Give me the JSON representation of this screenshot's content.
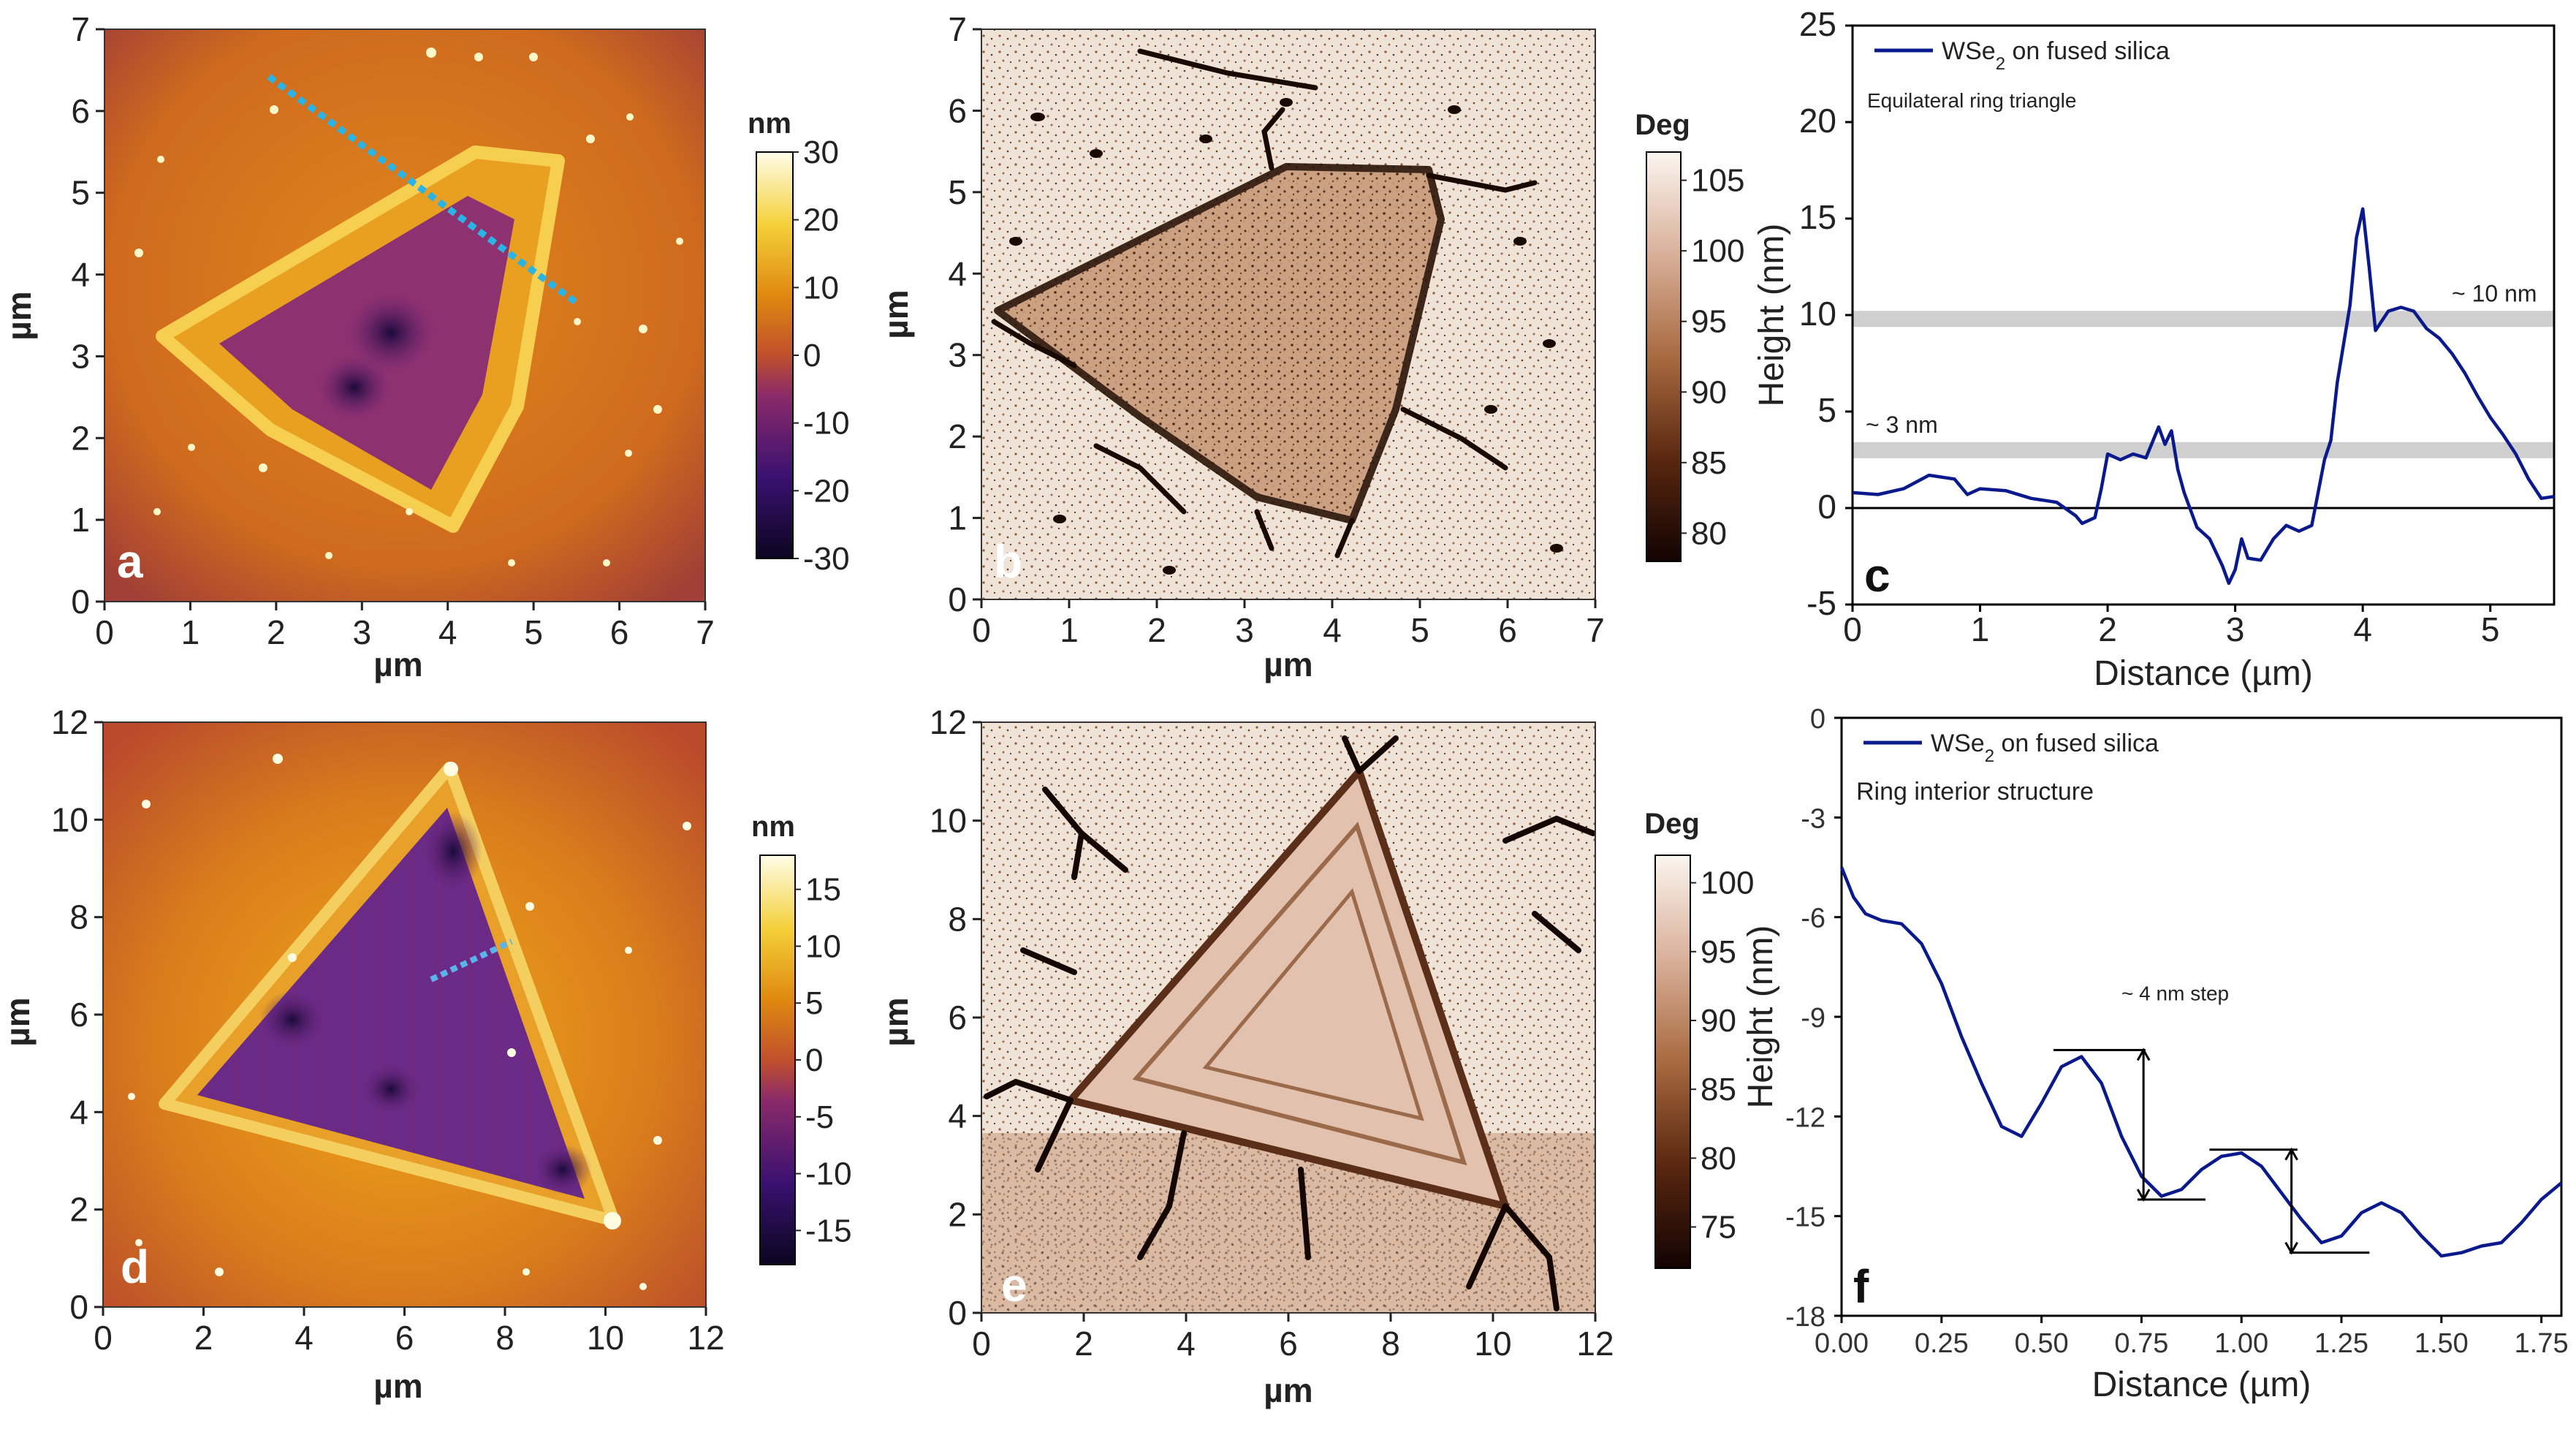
{
  "figure": {
    "panels": [
      {
        "id": "a",
        "label": "a",
        "type": "afm-height",
        "x_label": "µm",
        "y_label": "µm",
        "x_ticks": [
          "0",
          "1",
          "2",
          "3",
          "4",
          "5",
          "6",
          "7"
        ],
        "y_ticks": [
          "0",
          "1",
          "2",
          "3",
          "4",
          "5",
          "6",
          "7"
        ],
        "colorbar": {
          "unit": "nm",
          "ticks": [
            "30",
            "20",
            "10",
            "0",
            "-10",
            "-20",
            "-30"
          ],
          "min": -30,
          "max": 30
        }
      },
      {
        "id": "b",
        "label": "b",
        "type": "afm-phase",
        "x_label": "µm",
        "y_label": "µm",
        "x_ticks": [
          "0",
          "1",
          "2",
          "3",
          "4",
          "5",
          "6",
          "7"
        ],
        "y_ticks": [
          "0",
          "1",
          "2",
          "3",
          "4",
          "5",
          "6",
          "7"
        ],
        "colorbar": {
          "unit": "Deg",
          "ticks": [
            "105",
            "100",
            "95",
            "90",
            "85",
            "80"
          ],
          "min": 78,
          "max": 107
        }
      },
      {
        "id": "d",
        "label": "d",
        "type": "afm-height",
        "x_label": "µm",
        "y_label": "µm",
        "x_ticks": [
          "0",
          "2",
          "4",
          "6",
          "8",
          "10",
          "12"
        ],
        "y_ticks": [
          "0",
          "2",
          "4",
          "6",
          "8",
          "10",
          "12"
        ],
        "colorbar": {
          "unit": "nm",
          "ticks": [
            "15",
            "10",
            "5",
            "0",
            "-5",
            "-10",
            "-15"
          ],
          "min": -18,
          "max": 18
        }
      },
      {
        "id": "e",
        "label": "e",
        "type": "afm-phase",
        "x_label": "µm",
        "y_label": "µm",
        "x_ticks": [
          "0",
          "2",
          "4",
          "6",
          "8",
          "10",
          "12"
        ],
        "y_ticks": [
          "0",
          "2",
          "4",
          "6",
          "8",
          "10",
          "12"
        ],
        "colorbar": {
          "unit": "Deg",
          "ticks": [
            "100",
            "95",
            "90",
            "85",
            "80",
            "75"
          ],
          "min": 72,
          "max": 102
        }
      }
    ]
  },
  "chart_data": [
    {
      "panel": "c",
      "type": "line",
      "title": "",
      "legend": "WSe",
      "legend_sub": "2",
      "legend_suffix": " on fused silica",
      "subtitle": "Equilateral ring triangle",
      "xlabel": "Distance (µm)",
      "ylabel": "Height (nm)",
      "xlim": [
        0,
        5.5
      ],
      "ylim": [
        -5,
        25
      ],
      "x_ticks": [
        0,
        1,
        2,
        3,
        4,
        5
      ],
      "y_ticks": [
        -5,
        0,
        5,
        10,
        15,
        20,
        25
      ],
      "x_tick_labels": [
        "0",
        "1",
        "2",
        "3",
        "4",
        "5"
      ],
      "y_tick_labels": [
        "-5",
        "0",
        "5",
        "10",
        "15",
        "20",
        "25"
      ],
      "bands": [
        {
          "y": 3,
          "label": "~ 3 nm"
        },
        {
          "y": 9.8,
          "label": "~ 10 nm"
        }
      ],
      "label": "c",
      "series": [
        {
          "name": "WSe2 on fused silica",
          "color": "#0a1a8c",
          "x": [
            0,
            0.2,
            0.4,
            0.6,
            0.8,
            0.9,
            1.0,
            1.2,
            1.4,
            1.6,
            1.75,
            1.8,
            1.9,
            1.95,
            2.0,
            2.1,
            2.2,
            2.3,
            2.4,
            2.45,
            2.5,
            2.55,
            2.6,
            2.7,
            2.8,
            2.9,
            2.95,
            3.0,
            3.05,
            3.1,
            3.2,
            3.3,
            3.4,
            3.5,
            3.6,
            3.7,
            3.75,
            3.8,
            3.9,
            3.95,
            4.0,
            4.05,
            4.1,
            4.2,
            4.3,
            4.4,
            4.5,
            4.6,
            4.7,
            4.8,
            4.9,
            5.0,
            5.1,
            5.2,
            5.3,
            5.4,
            5.5
          ],
          "y": [
            0.8,
            0.7,
            1.0,
            1.7,
            1.5,
            0.7,
            1.0,
            0.9,
            0.5,
            0.3,
            -0.4,
            -0.8,
            -0.5,
            1.0,
            2.8,
            2.5,
            2.8,
            2.6,
            4.2,
            3.3,
            4.0,
            2.0,
            0.8,
            -1.0,
            -1.6,
            -3.0,
            -3.9,
            -3.2,
            -1.6,
            -2.6,
            -2.7,
            -1.6,
            -0.9,
            -1.2,
            -0.9,
            2.5,
            3.5,
            6.5,
            10.5,
            14.0,
            15.5,
            12.5,
            9.2,
            10.2,
            10.4,
            10.2,
            9.3,
            8.8,
            8.0,
            7.0,
            5.8,
            4.7,
            3.8,
            2.8,
            1.5,
            0.5,
            0.6
          ]
        }
      ]
    },
    {
      "panel": "f",
      "type": "line",
      "title": "",
      "legend": "WSe",
      "legend_sub": "2",
      "legend_suffix": " on fused silica",
      "subtitle": "Ring interior structure",
      "annotation": "~ 4 nm step",
      "xlabel": "Distance (µm)",
      "ylabel": "Height (nm)",
      "xlim": [
        0,
        1.8
      ],
      "ylim": [
        -18,
        0
      ],
      "x_ticks": [
        0,
        0.25,
        0.5,
        0.75,
        1.0,
        1.25,
        1.5,
        1.75
      ],
      "y_ticks": [
        0,
        -3,
        -6,
        -9,
        -12,
        -15,
        -18
      ],
      "x_tick_labels": [
        "0.00",
        "0.25",
        "0.50",
        "0.75",
        "1.00",
        "1.25",
        "1.50",
        "1.75"
      ],
      "y_tick_labels": [
        "0",
        "-3",
        "-6",
        "-9",
        "-12",
        "-15",
        "-18"
      ],
      "label": "f",
      "series": [
        {
          "name": "WSe2 on fused silica",
          "color": "#0a1a8c",
          "x": [
            0,
            0.03,
            0.06,
            0.1,
            0.15,
            0.2,
            0.25,
            0.3,
            0.35,
            0.4,
            0.45,
            0.5,
            0.55,
            0.6,
            0.65,
            0.7,
            0.75,
            0.8,
            0.85,
            0.9,
            0.95,
            1.0,
            1.05,
            1.1,
            1.15,
            1.2,
            1.25,
            1.3,
            1.35,
            1.4,
            1.45,
            1.5,
            1.55,
            1.6,
            1.65,
            1.7,
            1.75,
            1.8
          ],
          "y": [
            -4.5,
            -5.4,
            -5.9,
            -6.1,
            -6.2,
            -6.8,
            -8.0,
            -9.6,
            -11.0,
            -12.3,
            -12.6,
            -11.6,
            -10.5,
            -10.2,
            -11.0,
            -12.6,
            -13.8,
            -14.4,
            -14.2,
            -13.6,
            -13.2,
            -13.1,
            -13.5,
            -14.3,
            -15.1,
            -15.8,
            -15.6,
            -14.9,
            -14.6,
            -14.9,
            -15.6,
            -16.2,
            -16.1,
            -15.9,
            -15.8,
            -15.2,
            -14.5,
            -14.0
          ]
        }
      ]
    }
  ]
}
